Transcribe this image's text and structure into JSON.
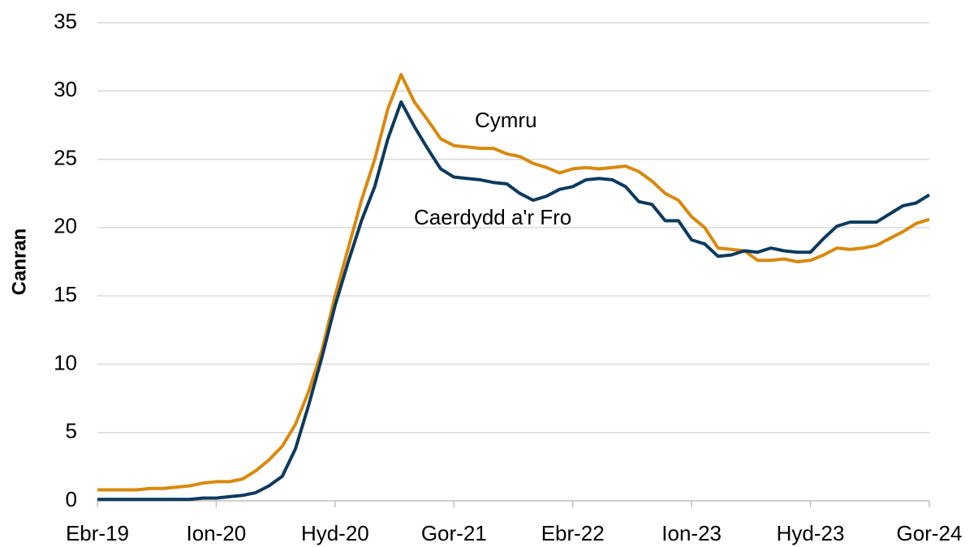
{
  "chart_data": {
    "type": "line",
    "ylabel": "Canran",
    "categories": [
      "Ebr-19",
      null,
      null,
      null,
      null,
      null,
      null,
      null,
      null,
      "Ion-20",
      null,
      null,
      null,
      null,
      null,
      null,
      null,
      null,
      "Hyd-20",
      null,
      null,
      null,
      null,
      null,
      null,
      null,
      null,
      "Gor-21",
      null,
      null,
      null,
      null,
      null,
      null,
      null,
      null,
      "Ebr-22",
      null,
      null,
      null,
      null,
      null,
      null,
      null,
      null,
      "Ion-23",
      null,
      null,
      null,
      null,
      null,
      null,
      null,
      null,
      "Hyd-23",
      null,
      null,
      null,
      null,
      null,
      null,
      null,
      null,
      "Gor-24"
    ],
    "series": [
      {
        "name": "Cymru",
        "color": "#d9890d",
        "values": [
          0.8,
          0.8,
          0.8,
          0.8,
          0.9,
          0.9,
          1.0,
          1.1,
          1.3,
          1.4,
          1.4,
          1.6,
          2.2,
          3.0,
          4.0,
          5.6,
          8.0,
          11.0,
          15.0,
          18.5,
          22.0,
          25.0,
          28.7,
          31.2,
          29.2,
          27.9,
          26.5,
          26.0,
          25.9,
          25.8,
          25.8,
          25.4,
          25.2,
          24.7,
          24.4,
          24.0,
          24.3,
          24.4,
          24.3,
          24.4,
          24.5,
          24.1,
          23.4,
          22.5,
          22.0,
          20.8,
          20.0,
          18.5,
          18.4,
          18.3,
          17.6,
          17.6,
          17.7,
          17.5,
          17.6,
          18.0,
          18.5,
          18.4,
          18.5,
          18.7,
          19.2,
          19.7,
          20.3,
          20.6
        ]
      },
      {
        "name": "Caerdydd a'r Fro",
        "color": "#0d3a5e",
        "values": [
          0.1,
          0.1,
          0.1,
          0.1,
          0.1,
          0.1,
          0.1,
          0.1,
          0.2,
          0.2,
          0.3,
          0.4,
          0.6,
          1.1,
          1.8,
          3.8,
          7.0,
          10.5,
          14.3,
          17.5,
          20.5,
          23.0,
          26.5,
          29.2,
          27.4,
          25.8,
          24.3,
          23.7,
          23.6,
          23.5,
          23.3,
          23.2,
          22.5,
          22.0,
          22.3,
          22.8,
          23.0,
          23.5,
          23.6,
          23.5,
          23.0,
          21.9,
          21.7,
          20.5,
          20.5,
          19.1,
          18.8,
          17.9,
          18.0,
          18.3,
          18.2,
          18.5,
          18.3,
          18.2,
          18.2,
          19.2,
          20.1,
          20.4,
          20.4,
          20.4,
          21.0,
          21.6,
          21.8,
          22.4
        ]
      }
    ],
    "ylim": [
      0,
      35
    ],
    "yticks": [
      0,
      5,
      10,
      15,
      20,
      25,
      30,
      35
    ],
    "grid": true
  }
}
